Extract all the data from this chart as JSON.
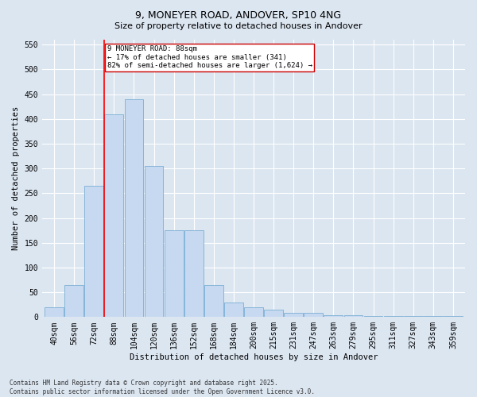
{
  "title": "9, MONEYER ROAD, ANDOVER, SP10 4NG",
  "subtitle": "Size of property relative to detached houses in Andover",
  "xlabel": "Distribution of detached houses by size in Andover",
  "ylabel": "Number of detached properties",
  "footer_line1": "Contains HM Land Registry data © Crown copyright and database right 2025.",
  "footer_line2": "Contains public sector information licensed under the Open Government Licence v3.0.",
  "bin_labels": [
    "40sqm",
    "56sqm",
    "72sqm",
    "88sqm",
    "104sqm",
    "120sqm",
    "136sqm",
    "152sqm",
    "168sqm",
    "184sqm",
    "200sqm",
    "215sqm",
    "231sqm",
    "247sqm",
    "263sqm",
    "279sqm",
    "295sqm",
    "311sqm",
    "327sqm",
    "343sqm",
    "359sqm"
  ],
  "bar_values": [
    20,
    65,
    265,
    410,
    440,
    305,
    175,
    175,
    65,
    30,
    20,
    15,
    8,
    8,
    4,
    4,
    2,
    2,
    2,
    2,
    2
  ],
  "bar_color": "#c6d9f1",
  "bar_edge_color": "#7bafd4",
  "red_line_x": 2.5,
  "red_line_label": "9 MONEYER ROAD: 88sqm",
  "annotation_line2": "← 17% of detached houses are smaller (341)",
  "annotation_line3": "82% of semi-detached houses are larger (1,624) →",
  "annotation_box_color": "#ffffff",
  "annotation_box_edge": "#cc0000",
  "ylim": [
    0,
    560
  ],
  "yticks": [
    0,
    50,
    100,
    150,
    200,
    250,
    300,
    350,
    400,
    450,
    500,
    550
  ],
  "background_color": "#dce6f1",
  "plot_bg_color": "#dce6f1",
  "title_fontsize": 9,
  "subtitle_fontsize": 8,
  "axis_label_fontsize": 7.5,
  "tick_fontsize": 7,
  "annotation_fontsize": 6.5,
  "footer_fontsize": 5.5
}
